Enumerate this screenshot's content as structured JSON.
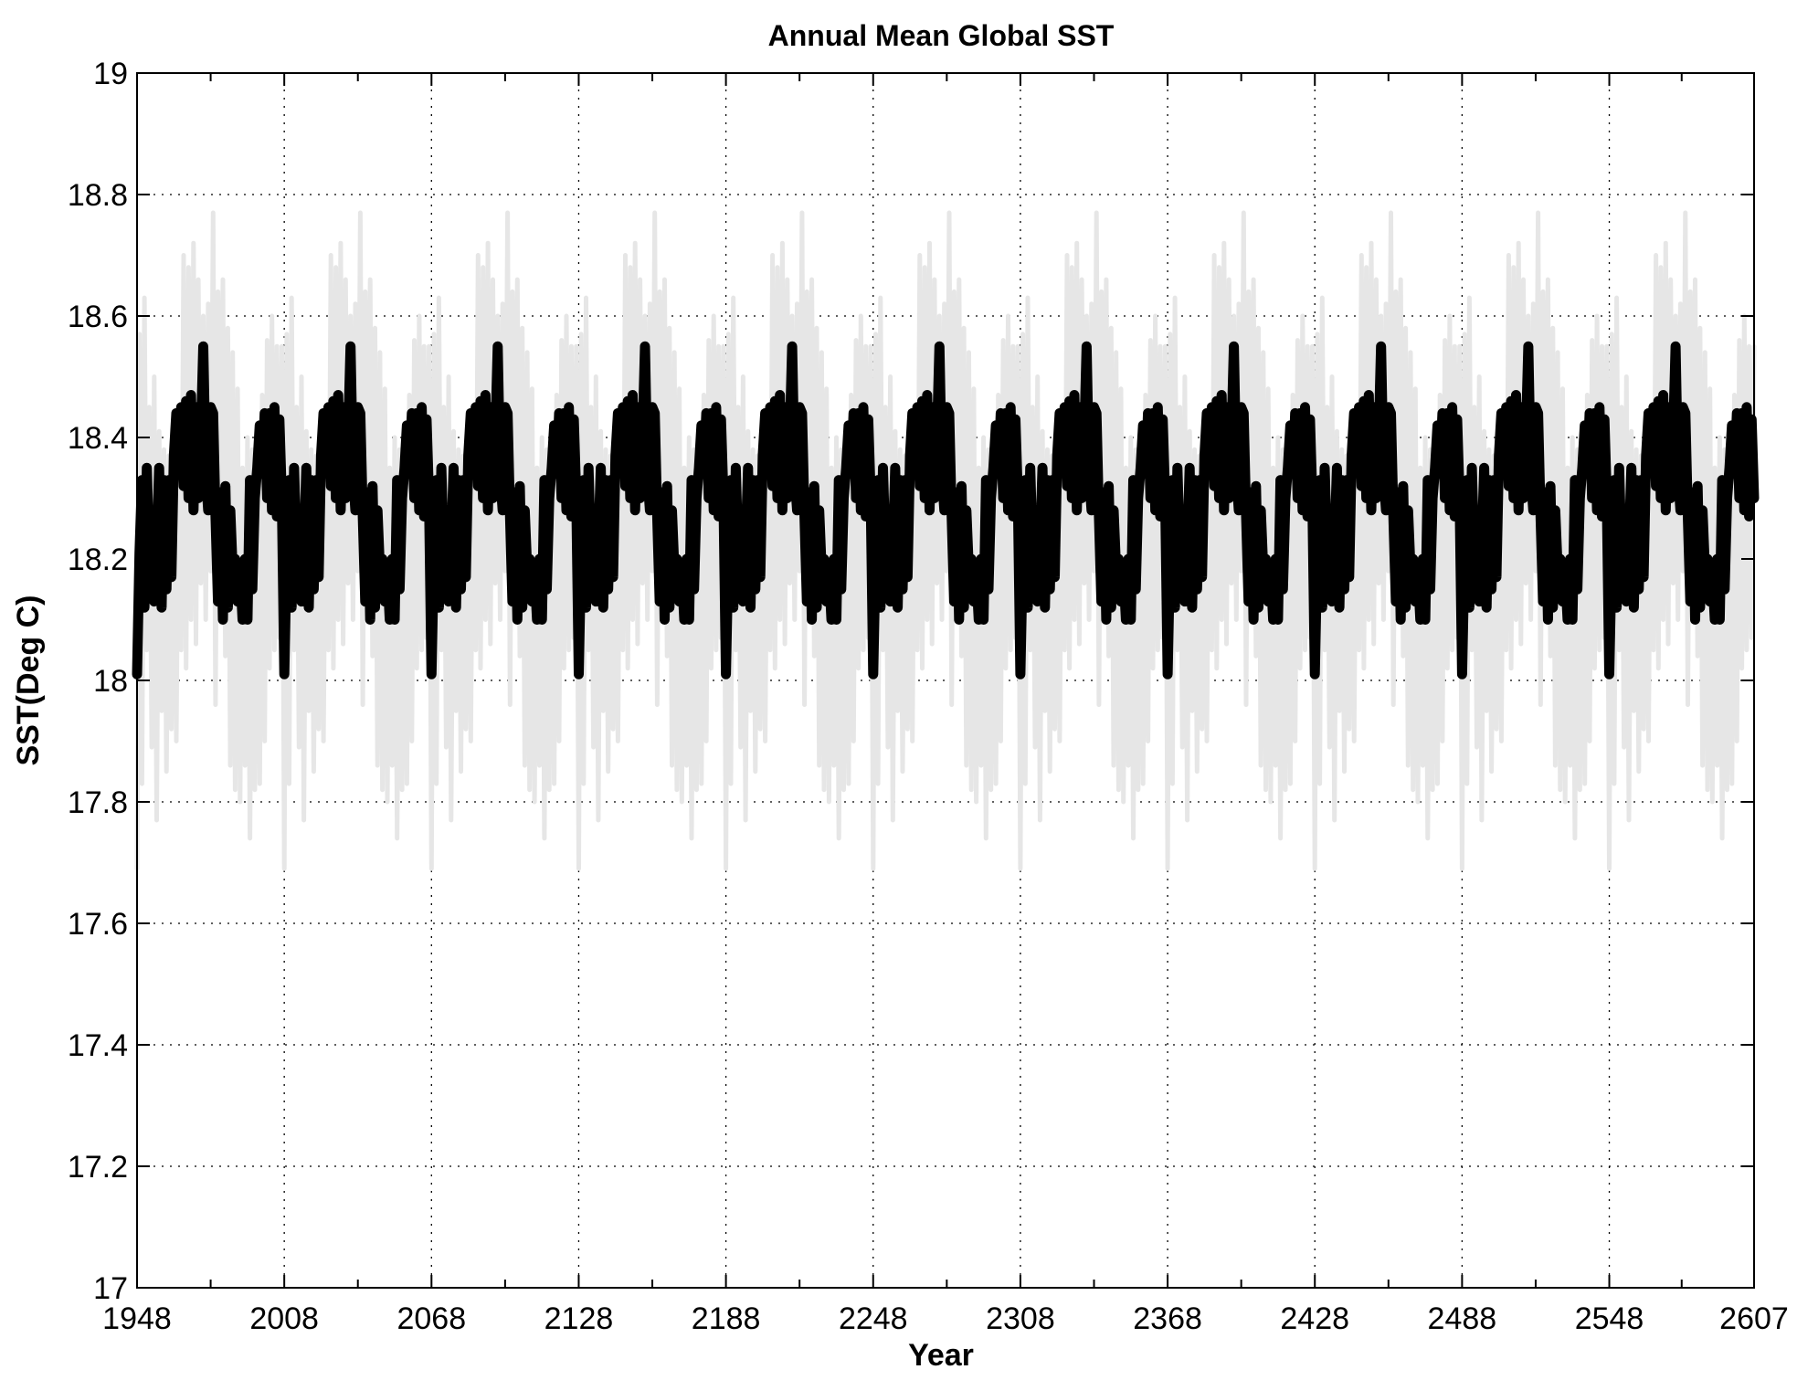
{
  "chart_data": {
    "type": "line",
    "title": "Annual Mean Global SST",
    "xlabel": "Year",
    "ylabel": "SST(Deg C)",
    "xlim": [
      1948,
      2607
    ],
    "ylim": [
      17,
      19
    ],
    "grid": true,
    "x_ticks": [
      1948,
      2008,
      2068,
      2128,
      2188,
      2248,
      2308,
      2368,
      2428,
      2488,
      2548,
      2607
    ],
    "y_ticks": [
      17,
      17.2,
      17.4,
      17.6,
      17.8,
      18,
      18.2,
      18.4,
      18.6,
      18.8,
      19
    ],
    "series": [
      {
        "style": "thin-light-grey",
        "color": "#e6e6e6",
        "x_start": 1948,
        "x_step": 1,
        "period_years": 60,
        "description_values": "annual values, repeating 60-year cycle",
        "cycle_values": [
          17.69,
          18.57,
          17.83,
          18.63,
          18.05,
          18.45,
          17.89,
          18.5,
          17.77,
          18.41,
          17.95,
          18.38,
          17.85,
          18.37,
          17.92,
          18.4,
          17.9,
          18.45,
          18.05,
          18.7,
          18.02,
          18.68,
          18.1,
          18.72,
          18.06,
          18.66,
          18.16,
          18.6,
          18.1,
          18.62,
          18.18,
          18.77,
          17.96,
          18.64,
          18.3,
          18.66,
          18.04,
          18.58,
          17.86,
          18.54,
          17.82,
          18.48,
          17.8,
          18.35,
          17.86,
          18.4,
          17.74,
          18.38,
          17.82,
          18.4,
          17.83,
          18.47,
          17.9,
          18.56,
          18.02,
          18.6,
          18.05,
          18.55,
          18.07,
          18.55
        ]
      },
      {
        "style": "thick-black",
        "color": "#000000",
        "x_start": 1948,
        "x_step": 1,
        "period_years": 60,
        "description_values": "smoothed annual values, repeating 60-year cycle",
        "cycle_values": [
          18.01,
          18.21,
          18.33,
          18.12,
          18.35,
          18.21,
          18.2,
          18.13,
          18.22,
          18.35,
          18.12,
          18.33,
          18.15,
          18.33,
          18.17,
          18.37,
          18.44,
          18.38,
          18.45,
          18.32,
          18.46,
          18.3,
          18.47,
          18.28,
          18.45,
          18.3,
          18.4,
          18.55,
          18.34,
          18.28,
          18.45,
          18.44,
          18.27,
          18.13,
          18.31,
          18.1,
          18.32,
          18.12,
          18.28,
          18.18,
          18.2,
          18.13,
          18.18,
          18.1,
          18.2,
          18.1,
          18.33,
          18.15,
          18.3,
          18.35,
          18.42,
          18.34,
          18.44,
          18.3,
          18.44,
          18.28,
          18.45,
          18.27,
          18.43,
          18.3
        ]
      }
    ]
  }
}
